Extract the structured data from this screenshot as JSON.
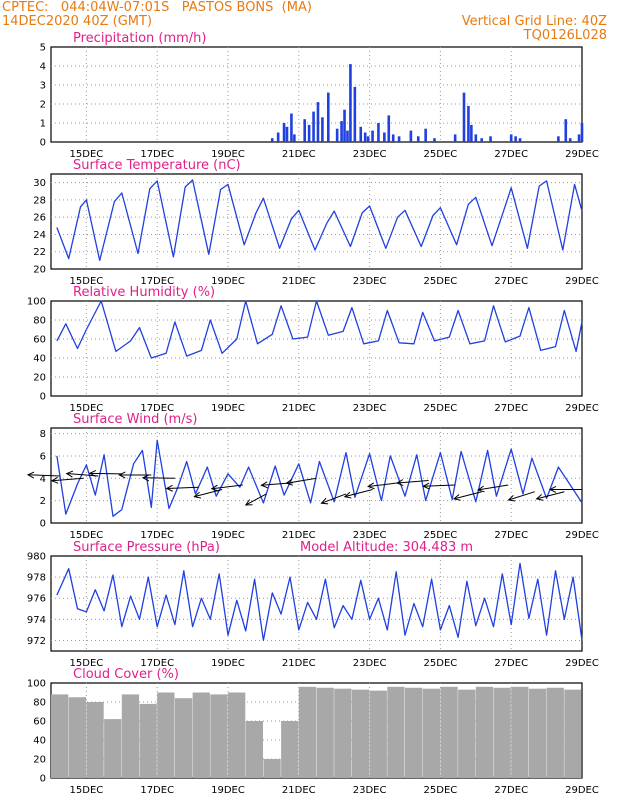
{
  "header": {
    "line1": "CPTEC:   044:04W-07:01S   PASTOS BONS  (MA)",
    "line2": "14DEC2020 40Z (GMT)",
    "right1": "Vertical Grid Line: 40Z",
    "right2": "TQ0126L028"
  },
  "colors": {
    "header": "#e87a10",
    "title": "#e0208a",
    "line": "#2040e0",
    "cloud": "#a8a8a8"
  },
  "chart_data": [
    {
      "type": "bar",
      "title": "Precipitation (mm/h)",
      "ylim": [
        0,
        5
      ],
      "yticks": [
        0,
        1,
        2,
        3,
        4,
        5
      ],
      "xlabels": [
        "15DEC",
        "17DEC",
        "19DEC",
        "21DEC",
        "23DEC",
        "25DEC",
        "27DEC",
        "29DEC"
      ],
      "x": [
        "20DEC 06Z",
        "20DEC 10Z",
        "20DEC 14Z",
        "20DEC 16Z",
        "20DEC 19Z",
        "20DEC 21Z",
        "21DEC 04Z",
        "21DEC 07Z",
        "21DEC 10Z",
        "21DEC 13Z",
        "21DEC 16Z",
        "21DEC 20Z",
        "22DEC 02Z",
        "22DEC 05Z",
        "22DEC 07Z",
        "22DEC 09Z",
        "22DEC 11Z",
        "22DEC 14Z",
        "22DEC 18Z",
        "22DEC 21Z",
        "22DEC 23Z",
        "23DEC 02Z",
        "23DEC 06Z",
        "23DEC 10Z",
        "23DEC 13Z",
        "23DEC 16Z",
        "23DEC 20Z",
        "24DEC 04Z",
        "24DEC 09Z",
        "24DEC 14Z",
        "24DEC 20Z",
        "25DEC 10Z",
        "25DEC 16Z",
        "25DEC 19Z",
        "25DEC 21Z",
        "26DEC 00Z",
        "26DEC 04Z",
        "26DEC 10Z",
        "27DEC 00Z",
        "27DEC 03Z",
        "27DEC 06Z",
        "28DEC 08Z",
        "28DEC 13Z",
        "28DEC 16Z",
        "28DEC 22Z",
        "29DEC 00Z"
      ],
      "values": [
        0.2,
        0.5,
        1.0,
        0.8,
        1.5,
        0.4,
        1.2,
        0.9,
        1.6,
        2.1,
        1.3,
        2.6,
        0.7,
        1.1,
        1.7,
        0.6,
        4.1,
        2.9,
        0.8,
        0.5,
        0.3,
        0.6,
        1.0,
        0.5,
        1.4,
        0.4,
        0.3,
        0.6,
        0.3,
        0.7,
        0.2,
        0.4,
        2.6,
        1.9,
        0.9,
        0.4,
        0.2,
        0.3,
        0.4,
        0.3,
        0.2,
        0.3,
        1.2,
        0.2,
        0.4,
        1.0
      ]
    },
    {
      "type": "line",
      "title": "Surface Temperature (nC)",
      "ylim": [
        20,
        31
      ],
      "yticks": [
        20,
        22,
        24,
        26,
        28,
        30
      ],
      "xlabels": [
        "15DEC",
        "17DEC",
        "19DEC",
        "21DEC",
        "23DEC",
        "25DEC",
        "27DEC",
        "29DEC"
      ],
      "x": [
        "14DEC 04Z",
        "14DEC 12Z",
        "14DEC 20Z",
        "15DEC 00Z",
        "15DEC 09Z",
        "15DEC 19Z",
        "16DEC 00Z",
        "16DEC 11Z",
        "16DEC 19Z",
        "17DEC 00Z",
        "17DEC 11Z",
        "17DEC 19Z",
        "18DEC 00Z",
        "18DEC 11Z",
        "18DEC 19Z",
        "19DEC 00Z",
        "19DEC 11Z",
        "19DEC 19Z",
        "20DEC 00Z",
        "20DEC 11Z",
        "20DEC 19Z",
        "21DEC 00Z",
        "21DEC 11Z",
        "21DEC 19Z",
        "22DEC 00Z",
        "22DEC 11Z",
        "22DEC 19Z",
        "23DEC 00Z",
        "23DEC 11Z",
        "23DEC 19Z",
        "24DEC 00Z",
        "24DEC 11Z",
        "24DEC 19Z",
        "25DEC 00Z",
        "25DEC 11Z",
        "25DEC 19Z",
        "26DEC 00Z",
        "26DEC 11Z",
        "26DEC 19Z",
        "27DEC 00Z",
        "27DEC 11Z",
        "27DEC 19Z",
        "28DEC 00Z",
        "28DEC 11Z",
        "28DEC 19Z",
        "29DEC 00Z"
      ],
      "values": [
        24.8,
        21.2,
        27.2,
        28.0,
        21.0,
        27.8,
        28.8,
        21.8,
        29.3,
        30.2,
        21.4,
        29.5,
        30.3,
        21.7,
        29.2,
        29.8,
        22.8,
        26.5,
        28.2,
        22.4,
        25.8,
        26.8,
        22.2,
        25.3,
        26.7,
        22.6,
        26.5,
        27.3,
        22.4,
        26.0,
        26.8,
        22.6,
        26.2,
        27.1,
        22.8,
        27.5,
        28.3,
        22.7,
        26.8,
        29.4,
        22.4,
        29.6,
        30.2,
        22.2,
        29.8,
        26.7
      ]
    },
    {
      "type": "line",
      "title": "Relative Humidity (%)",
      "ylim": [
        0,
        100
      ],
      "yticks": [
        0,
        20,
        40,
        60,
        80,
        100
      ],
      "xlabels": [
        "15DEC",
        "17DEC",
        "19DEC",
        "21DEC",
        "23DEC",
        "25DEC",
        "27DEC",
        "29DEC"
      ],
      "x": [
        "14DEC 04Z",
        "14DEC 10Z",
        "14DEC 18Z",
        "15DEC 00Z",
        "15DEC 10Z",
        "15DEC 20Z",
        "16DEC 06Z",
        "16DEC 12Z",
        "16DEC 20Z",
        "17DEC 06Z",
        "17DEC 12Z",
        "17DEC 20Z",
        "18DEC 06Z",
        "18DEC 12Z",
        "18DEC 20Z",
        "19DEC 06Z",
        "19DEC 12Z",
        "19DEC 20Z",
        "20DEC 06Z",
        "20DEC 12Z",
        "20DEC 20Z",
        "21DEC 06Z",
        "21DEC 12Z",
        "21DEC 20Z",
        "22DEC 06Z",
        "22DEC 12Z",
        "22DEC 20Z",
        "23DEC 06Z",
        "23DEC 12Z",
        "23DEC 20Z",
        "24DEC 06Z",
        "24DEC 12Z",
        "24DEC 20Z",
        "25DEC 06Z",
        "25DEC 12Z",
        "25DEC 20Z",
        "26DEC 06Z",
        "26DEC 12Z",
        "26DEC 20Z",
        "27DEC 06Z",
        "27DEC 12Z",
        "27DEC 20Z",
        "28DEC 06Z",
        "28DEC 12Z",
        "28DEC 20Z",
        "29DEC 00Z"
      ],
      "values": [
        58,
        76,
        50,
        70,
        100,
        47,
        58,
        72,
        40,
        45,
        78,
        42,
        48,
        80,
        45,
        60,
        100,
        55,
        65,
        95,
        60,
        62,
        100,
        64,
        68,
        93,
        55,
        58,
        90,
        56,
        55,
        88,
        58,
        62,
        90,
        55,
        58,
        95,
        57,
        63,
        93,
        48,
        52,
        90,
        47,
        78
      ]
    },
    {
      "type": "line",
      "title": "Surface Wind (m/s)",
      "ylim": [
        0,
        8.5
      ],
      "yticks": [
        0,
        2,
        4,
        6,
        8
      ],
      "xlabels": [
        "15DEC",
        "17DEC",
        "19DEC",
        "21DEC",
        "23DEC",
        "25DEC",
        "27DEC",
        "29DEC"
      ],
      "x": [
        "14DEC 04Z",
        "14DEC 10Z",
        "14DEC 18Z",
        "15DEC 00Z",
        "15DEC 06Z",
        "15DEC 12Z",
        "15DEC 18Z",
        "16DEC 00Z",
        "16DEC 08Z",
        "16DEC 14Z",
        "16DEC 20Z",
        "17DEC 00Z",
        "17DEC 08Z",
        "17DEC 14Z",
        "17DEC 20Z",
        "18DEC 02Z",
        "18DEC 10Z",
        "18DEC 16Z",
        "19DEC 00Z",
        "19DEC 08Z",
        "19DEC 14Z",
        "20DEC 00Z",
        "20DEC 08Z",
        "20DEC 14Z",
        "21DEC 00Z",
        "21DEC 08Z",
        "21DEC 14Z",
        "22DEC 00Z",
        "22DEC 08Z",
        "22DEC 14Z",
        "23DEC 00Z",
        "23DEC 08Z",
        "23DEC 14Z",
        "24DEC 00Z",
        "24DEC 08Z",
        "24DEC 14Z",
        "25DEC 00Z",
        "25DEC 08Z",
        "25DEC 14Z",
        "26DEC 00Z",
        "26DEC 08Z",
        "26DEC 14Z",
        "27DEC 00Z",
        "27DEC 08Z",
        "27DEC 14Z",
        "28DEC 00Z",
        "28DEC 08Z",
        "28DEC 14Z",
        "29DEC 00Z"
      ],
      "values": [
        6.0,
        0.8,
        3.5,
        5.2,
        2.5,
        6.1,
        0.6,
        1.2,
        5.3,
        6.5,
        1.4,
        7.4,
        1.3,
        3.2,
        5.5,
        2.6,
        5.0,
        2.4,
        4.4,
        3.2,
        5.0,
        1.8,
        5.1,
        2.5,
        5.3,
        1.8,
        5.5,
        1.9,
        6.3,
        2.3,
        6.2,
        2.0,
        6.0,
        2.4,
        6.1,
        2.0,
        6.3,
        2.1,
        6.4,
        1.9,
        6.5,
        2.4,
        6.6,
        2.6,
        5.8,
        2.2,
        5.0,
        3.8,
        1.8
      ],
      "arrows": [
        {
          "x": "14DEC 06Z",
          "speed": 4.2,
          "to_deg": 95
        },
        {
          "x": "14DEC 22Z",
          "speed": 4.0,
          "to_deg": 80
        },
        {
          "x": "15DEC 08Z",
          "speed": 4.2,
          "to_deg": 100
        },
        {
          "x": "16DEC 00Z",
          "speed": 4.4,
          "to_deg": 92
        },
        {
          "x": "16DEC 20Z",
          "speed": 4.3,
          "to_deg": 90
        },
        {
          "x": "17DEC 12Z",
          "speed": 4.0,
          "to_deg": 92
        },
        {
          "x": "18DEC 04Z",
          "speed": 3.2,
          "to_deg": 85
        },
        {
          "x": "18DEC 20Z",
          "speed": 3.0,
          "to_deg": 60
        },
        {
          "x": "19DEC 10Z",
          "speed": 3.4,
          "to_deg": 75
        },
        {
          "x": "20DEC 02Z",
          "speed": 2.6,
          "to_deg": 40
        },
        {
          "x": "20DEC 20Z",
          "speed": 3.6,
          "to_deg": 80
        },
        {
          "x": "21DEC 12Z",
          "speed": 4.0,
          "to_deg": 70
        },
        {
          "x": "22DEC 08Z",
          "speed": 2.6,
          "to_deg": 50
        },
        {
          "x": "23DEC 02Z",
          "speed": 3.0,
          "to_deg": 60
        },
        {
          "x": "23DEC 20Z",
          "speed": 3.6,
          "to_deg": 75
        },
        {
          "x": "24DEC 16Z",
          "speed": 3.8,
          "to_deg": 80
        },
        {
          "x": "25DEC 10Z",
          "speed": 3.4,
          "to_deg": 85
        },
        {
          "x": "26DEC 04Z",
          "speed": 2.8,
          "to_deg": 60
        },
        {
          "x": "26DEC 22Z",
          "speed": 3.4,
          "to_deg": 70
        },
        {
          "x": "27DEC 16Z",
          "speed": 2.8,
          "to_deg": 55
        },
        {
          "x": "28DEC 12Z",
          "speed": 2.8,
          "to_deg": 60
        },
        {
          "x": "29DEC 00Z",
          "speed": 3.0,
          "to_deg": 90
        }
      ]
    },
    {
      "type": "line",
      "title": "Surface Pressure (hPa)",
      "annotation": "Model Altitude: 304.483  m",
      "ylim": [
        971,
        980
      ],
      "yticks": [
        972,
        974,
        976,
        978,
        980
      ],
      "xlabels": [
        "15DEC",
        "17DEC",
        "19DEC",
        "21DEC",
        "23DEC",
        "25DEC",
        "27DEC",
        "29DEC"
      ],
      "x": [
        "14DEC 04Z",
        "14DEC 12Z",
        "14DEC 18Z",
        "15DEC 00Z",
        "15DEC 06Z",
        "15DEC 12Z",
        "15DEC 18Z",
        "16DEC 00Z",
        "16DEC 06Z",
        "16DEC 12Z",
        "16DEC 18Z",
        "17DEC 00Z",
        "17DEC 06Z",
        "17DEC 12Z",
        "17DEC 18Z",
        "18DEC 00Z",
        "18DEC 06Z",
        "18DEC 12Z",
        "18DEC 18Z",
        "19DEC 00Z",
        "19DEC 06Z",
        "19DEC 12Z",
        "19DEC 18Z",
        "20DEC 00Z",
        "20DEC 06Z",
        "20DEC 12Z",
        "20DEC 18Z",
        "21DEC 00Z",
        "21DEC 06Z",
        "21DEC 12Z",
        "21DEC 18Z",
        "22DEC 00Z",
        "22DEC 06Z",
        "22DEC 12Z",
        "22DEC 18Z",
        "23DEC 00Z",
        "23DEC 06Z",
        "23DEC 12Z",
        "23DEC 18Z",
        "24DEC 00Z",
        "24DEC 06Z",
        "24DEC 12Z",
        "24DEC 18Z",
        "25DEC 00Z",
        "25DEC 06Z",
        "25DEC 12Z",
        "25DEC 18Z",
        "26DEC 00Z",
        "26DEC 06Z",
        "26DEC 12Z",
        "26DEC 18Z",
        "27DEC 00Z",
        "27DEC 06Z",
        "27DEC 12Z",
        "27DEC 18Z",
        "28DEC 00Z",
        "28DEC 06Z",
        "28DEC 12Z",
        "28DEC 18Z",
        "29DEC 00Z"
      ],
      "values": [
        976.3,
        978.8,
        975.0,
        974.7,
        976.8,
        974.8,
        978.2,
        973.3,
        976.2,
        974.0,
        978.0,
        973.3,
        976.3,
        973.5,
        978.6,
        973.3,
        976.0,
        974.0,
        978.3,
        972.5,
        975.8,
        972.9,
        977.8,
        972.0,
        976.5,
        974.5,
        978.0,
        973.0,
        975.6,
        974.0,
        977.8,
        973.2,
        975.3,
        974.0,
        977.7,
        974.0,
        976.0,
        973.0,
        978.5,
        972.5,
        975.5,
        973.3,
        977.8,
        973.0,
        975.3,
        972.3,
        977.6,
        973.4,
        976.0,
        973.3,
        978.3,
        973.5,
        979.3,
        974.1,
        977.8,
        972.5,
        978.6,
        974.0,
        978.0,
        972.0
      ]
    },
    {
      "type": "bar",
      "title": "Cloud Cover (%)",
      "ylim": [
        0,
        100
      ],
      "yticks": [
        0,
        20,
        40,
        60,
        80,
        100
      ],
      "xlabels": [
        "15DEC",
        "17DEC",
        "19DEC",
        "21DEC",
        "23DEC",
        "25DEC",
        "27DEC",
        "29DEC"
      ],
      "x": [
        "14DEC 06Z",
        "14DEC 18Z",
        "15DEC 06Z",
        "15DEC 18Z",
        "16DEC 06Z",
        "16DEC 18Z",
        "17DEC 06Z",
        "17DEC 18Z",
        "18DEC 06Z",
        "18DEC 18Z",
        "19DEC 06Z",
        "19DEC 18Z",
        "20DEC 06Z",
        "20DEC 18Z",
        "21DEC 06Z",
        "21DEC 18Z",
        "22DEC 06Z",
        "22DEC 18Z",
        "23DEC 06Z",
        "23DEC 18Z",
        "24DEC 06Z",
        "24DEC 18Z",
        "25DEC 06Z",
        "25DEC 18Z",
        "26DEC 06Z",
        "26DEC 18Z",
        "27DEC 06Z",
        "27DEC 18Z",
        "28DEC 06Z",
        "28DEC 18Z"
      ],
      "values": [
        88,
        85,
        80,
        62,
        88,
        78,
        90,
        84,
        90,
        88,
        90,
        60,
        20,
        60,
        96,
        95,
        94,
        93,
        92,
        96,
        95,
        94,
        96,
        93,
        96,
        95,
        96,
        94,
        95,
        93
      ]
    }
  ]
}
